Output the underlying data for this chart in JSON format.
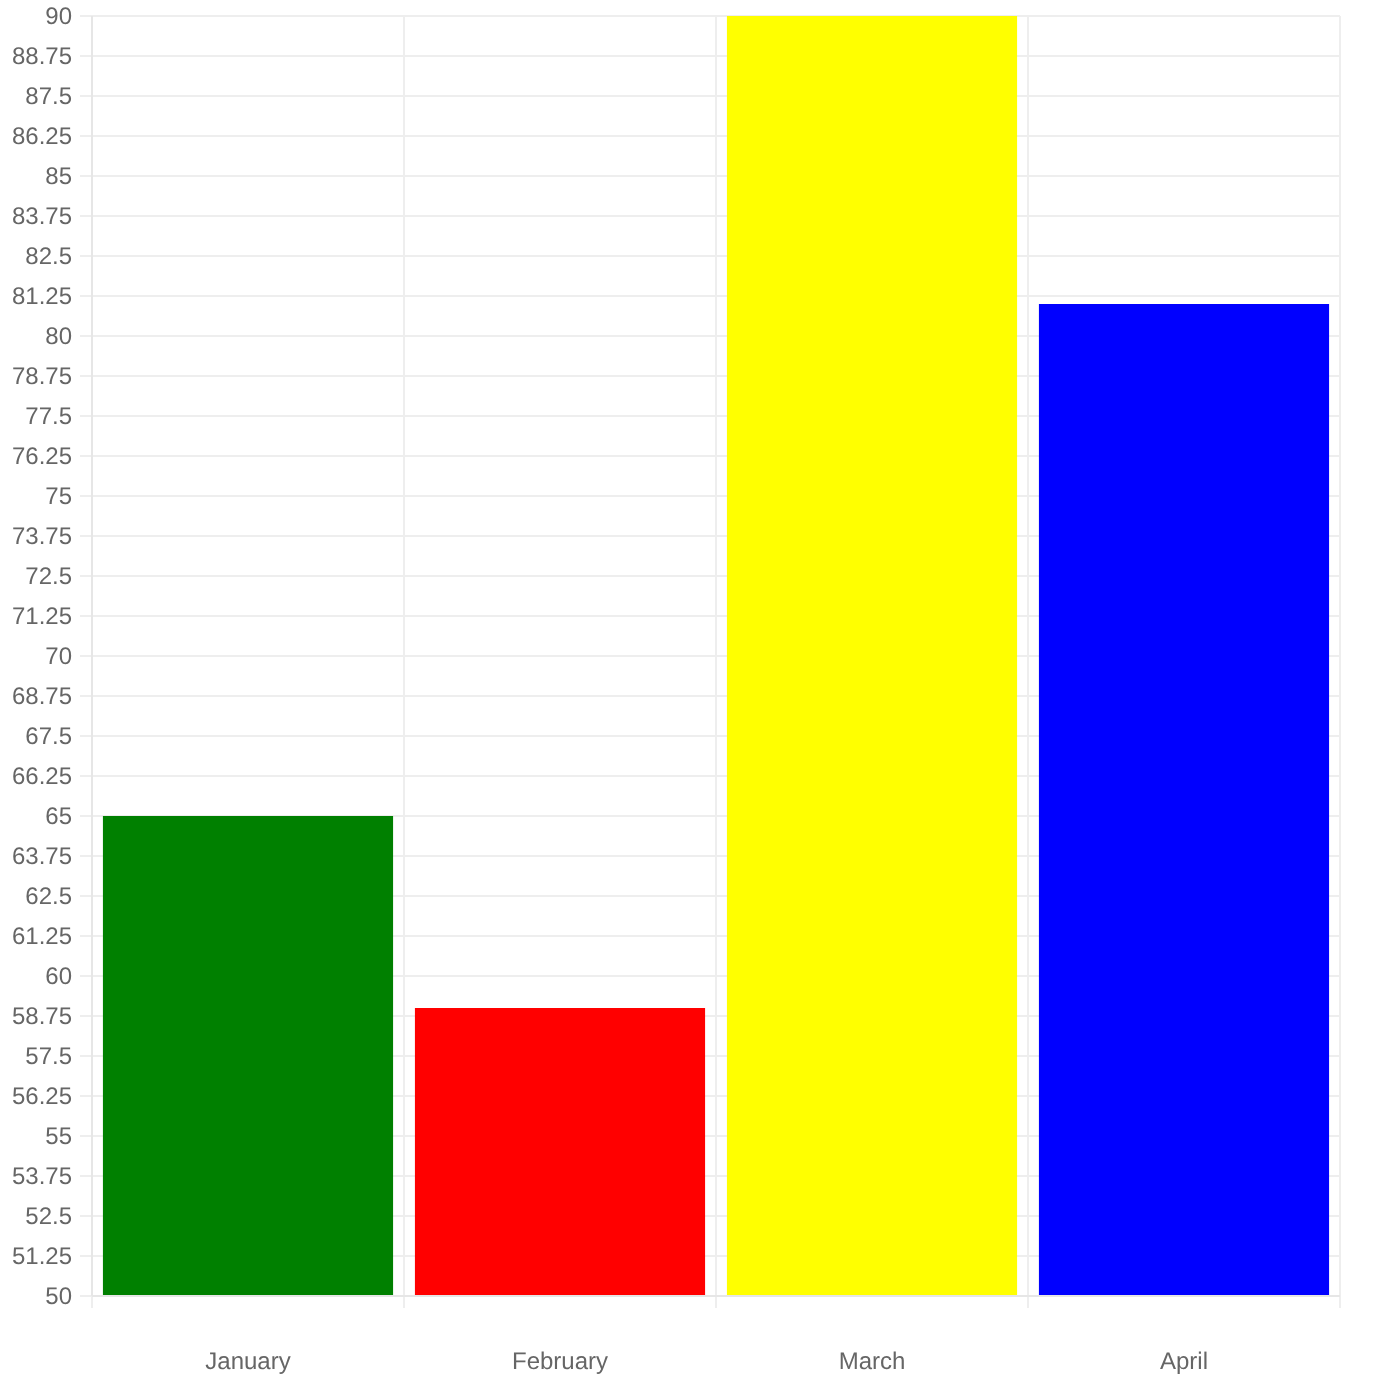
{
  "chart_data": {
    "type": "bar",
    "categories": [
      "January",
      "February",
      "March",
      "April"
    ],
    "values": [
      65,
      59,
      90,
      81
    ],
    "colors": [
      "#008000",
      "#ff0000",
      "#ffff00",
      "#0000ff"
    ],
    "ylim": [
      50,
      90
    ],
    "yticks": [
      50,
      51.25,
      52.5,
      53.75,
      55,
      56.25,
      57.5,
      58.75,
      60,
      61.25,
      62.5,
      63.75,
      65,
      66.25,
      67.5,
      68.75,
      70,
      71.25,
      72.5,
      73.75,
      75,
      76.25,
      77.5,
      78.75,
      80,
      81.25,
      82.5,
      83.75,
      85,
      86.25,
      87.5,
      88.75,
      90
    ],
    "grid": true
  }
}
